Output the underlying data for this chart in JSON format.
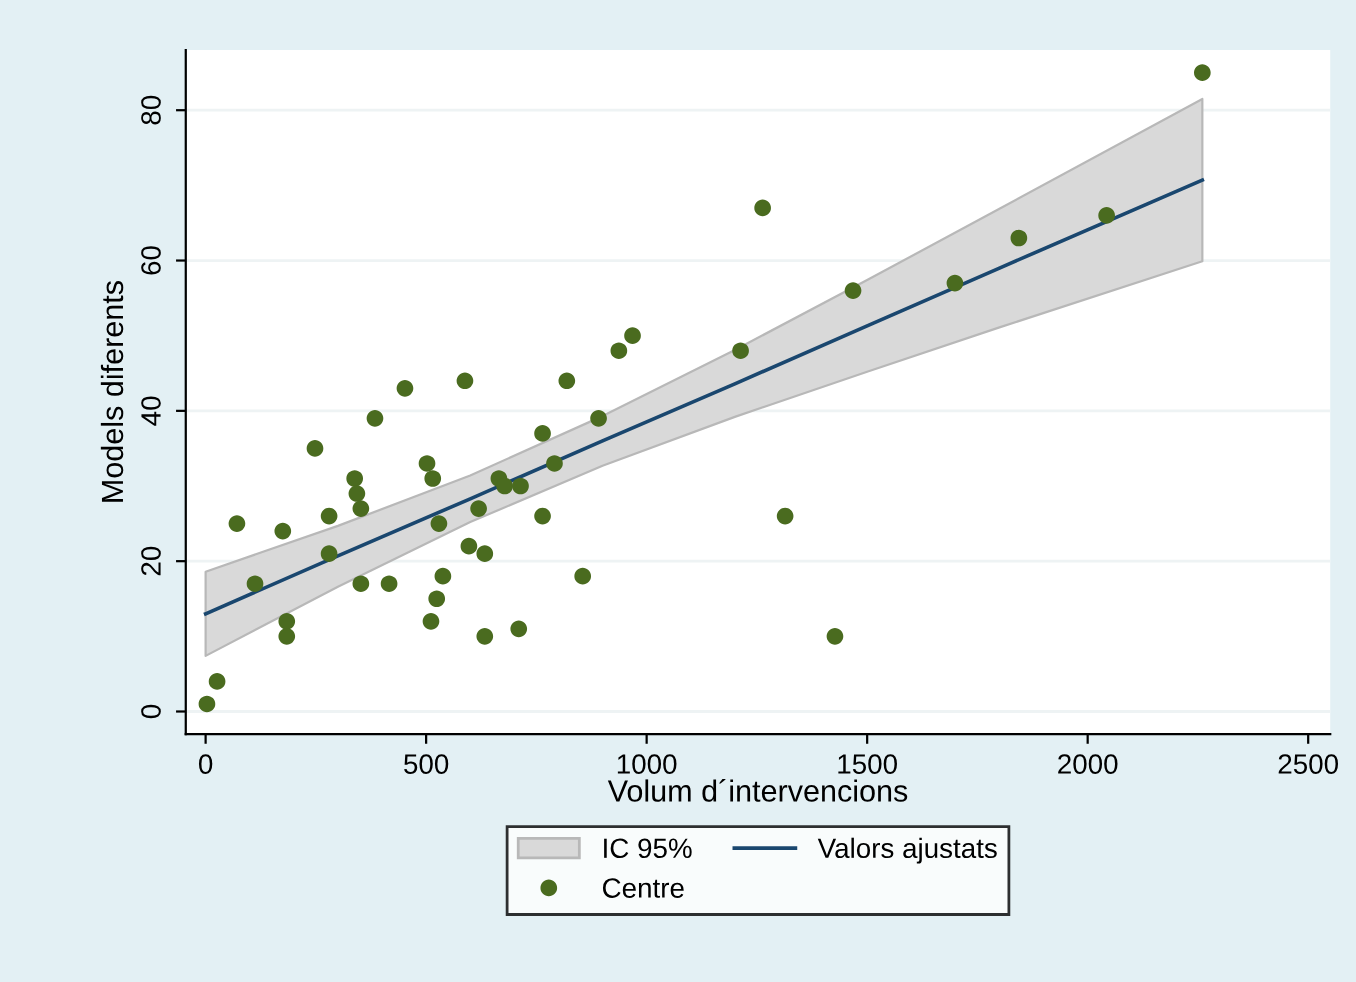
{
  "chart_data": {
    "type": "scatter",
    "xlabel": "Volum d´intervencions",
    "ylabel": "Models diferents",
    "xlim": [
      -45,
      2550
    ],
    "ylim": [
      -3,
      88
    ],
    "xticks": [
      0,
      500,
      1000,
      1500,
      2000,
      2500
    ],
    "yticks": [
      0,
      20,
      40,
      60,
      80
    ],
    "grid": "y",
    "legend": "bottom",
    "annotations": [
      "IC 95%"
    ],
    "series": [
      {
        "name": "Valors ajustats",
        "type": "line",
        "color": "#1a476f",
        "x": [
          0,
          300,
          600,
          900,
          1200,
          1500,
          1800,
          2260
        ],
        "values": [
          13,
          20.7,
          28.3,
          36.0,
          43.6,
          51.3,
          59.0,
          70.7
        ],
        "lower": [
          7.4,
          16.6,
          25.2,
          32.7,
          39.2,
          45.2,
          51.1,
          59.9
        ],
        "upper": [
          18.6,
          24.7,
          31.4,
          39.3,
          48.1,
          57.4,
          66.9,
          81.5
        ]
      },
      {
        "name": "Centre",
        "color": "#4a6b1f",
        "marker": "circle",
        "x": [
          3,
          26,
          71,
          112,
          175,
          184,
          184,
          248,
          280,
          280,
          338,
          343,
          352,
          352,
          384,
          416,
          452,
          502,
          515,
          529,
          538,
          524,
          511,
          588,
          597,
          619,
          633,
          633,
          665,
          678,
          714,
          710,
          764,
          764,
          791,
          819,
          855,
          891,
          937,
          968,
          1213,
          1263,
          1468,
          1314,
          1427,
          1699,
          1844,
          2043,
          2260
        ],
        "values": [
          1,
          4,
          25,
          17,
          24,
          12,
          10,
          35,
          26,
          21,
          31,
          29,
          27,
          17,
          39,
          17,
          43,
          33,
          31,
          25,
          18,
          15,
          12,
          44,
          22,
          27,
          21,
          10,
          31,
          30,
          30,
          11,
          37,
          26,
          33,
          44,
          18,
          39,
          48,
          50,
          48,
          67,
          56,
          26,
          10,
          57,
          63,
          66,
          85
        ]
      }
    ]
  }
}
